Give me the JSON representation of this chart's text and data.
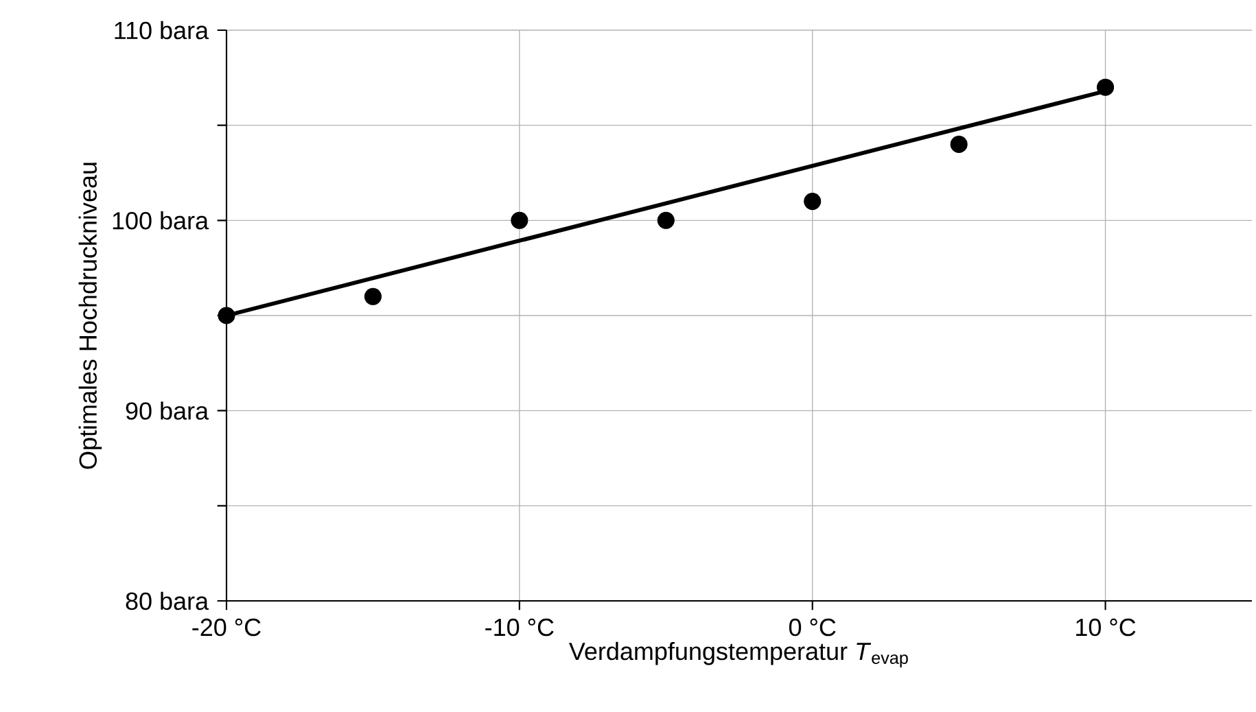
{
  "chart_data": {
    "type": "scatter",
    "xlabel": "Verdampfungstemperatur   *T*$_{evap}$",
    "ylabel": "Optimales Hochdruckniveau",
    "xlim": [
      -20,
      15
    ],
    "ylim": [
      80,
      110
    ],
    "xticks": [
      {
        "value": -20,
        "label": "-20 °C"
      },
      {
        "value": -10,
        "label": "-10 °C"
      },
      {
        "value": 0,
        "label": "0 °C"
      },
      {
        "value": 10,
        "label": "10 °C"
      }
    ],
    "yticks": [
      {
        "value": 80,
        "label": "80 bara"
      },
      {
        "value": 85,
        "label": null
      },
      {
        "value": 90,
        "label": "90 bara"
      },
      {
        "value": 95,
        "label": null
      },
      {
        "value": 100,
        "label": "100 bara"
      },
      {
        "value": 105,
        "label": null
      },
      {
        "value": 110,
        "label": "110 bara"
      }
    ],
    "grid": true,
    "series": [
      {
        "color": "#000000",
        "marker": "circle",
        "x": [
          -20,
          -15,
          -10,
          -5,
          0,
          5,
          10
        ],
        "values": [
          95,
          96,
          100,
          100,
          101,
          104,
          107
        ]
      },
      {
        "type": "line",
        "color": "#000000",
        "marker": "none",
        "line_style": "solid",
        "x": [
          -20,
          10
        ],
        "values": [
          95,
          106.8
        ]
      }
    ]
  }
}
